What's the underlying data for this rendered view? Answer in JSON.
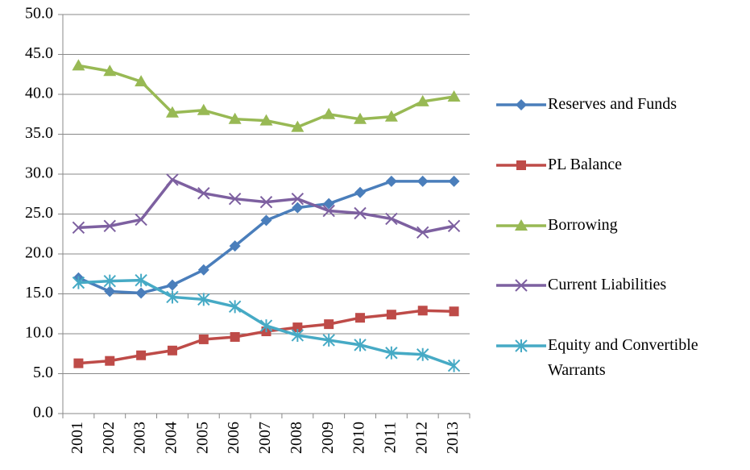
{
  "chart_data": {
    "type": "line",
    "categories": [
      "2001",
      "2002",
      "2003",
      "2004",
      "2005",
      "2006",
      "2007",
      "2008",
      "2009",
      "2010",
      "2011",
      "2012",
      "2013"
    ],
    "series": [
      {
        "name": "Reserves and Funds",
        "color": "#4a7ebb",
        "marker": "diamond",
        "values": [
          17.0,
          15.3,
          15.1,
          16.1,
          18.0,
          21.0,
          24.2,
          25.8,
          26.3,
          27.7,
          29.1,
          29.1,
          29.1
        ]
      },
      {
        "name": "PL Balance",
        "color": "#be4b48",
        "marker": "square",
        "values": [
          6.3,
          6.6,
          7.3,
          7.9,
          9.3,
          9.6,
          10.3,
          10.8,
          11.2,
          12.0,
          12.4,
          12.9,
          12.8
        ]
      },
      {
        "name": "Borrowing",
        "color": "#98b954",
        "marker": "triangle",
        "values": [
          43.6,
          42.9,
          41.6,
          37.7,
          38.0,
          36.9,
          36.7,
          35.9,
          37.5,
          36.9,
          37.2,
          39.1,
          39.7
        ]
      },
      {
        "name": "Current Liabilities",
        "color": "#7d60a0",
        "marker": "x",
        "values": [
          23.3,
          23.5,
          24.3,
          29.3,
          27.6,
          26.9,
          26.5,
          26.9,
          25.4,
          25.1,
          24.4,
          22.7,
          23.5
        ]
      },
      {
        "name": "Equity and Convertible Warrants",
        "color": "#46aac5",
        "marker": "star",
        "values": [
          16.4,
          16.6,
          16.7,
          14.6,
          14.3,
          13.4,
          11.0,
          9.8,
          9.2,
          8.6,
          7.6,
          7.4,
          6.0
        ]
      }
    ],
    "ylim": [
      0,
      50
    ],
    "yticks": [
      {
        "value": 0,
        "label": "0.0"
      },
      {
        "value": 5,
        "label": "5.0"
      },
      {
        "value": 10,
        "label": "10.0"
      },
      {
        "value": 15,
        "label": "15.0"
      },
      {
        "value": 20,
        "label": "20.0"
      },
      {
        "value": 25,
        "label": "25.0"
      },
      {
        "value": 30,
        "label": "30.0"
      },
      {
        "value": 35,
        "label": "35.0"
      },
      {
        "value": 40,
        "label": "40.0"
      },
      {
        "value": 45,
        "label": "45.0"
      },
      {
        "value": 50,
        "label": "50.0"
      }
    ],
    "grid": true,
    "legend": "right"
  }
}
